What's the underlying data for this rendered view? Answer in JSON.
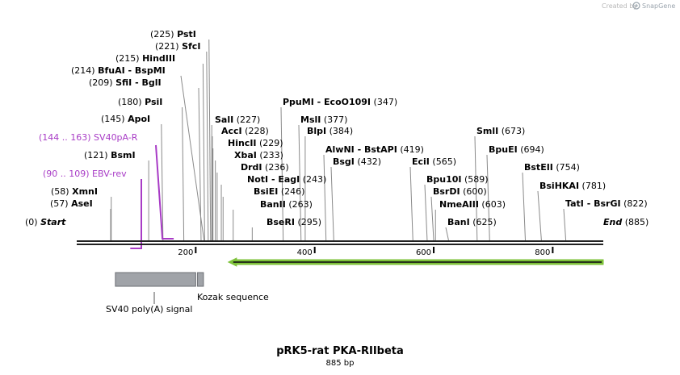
{
  "credit": {
    "prefix": "Created by",
    "brand": "SnapGene"
  },
  "map": {
    "name": "pRK5-rat PKA-RIIbeta",
    "length_label": "885 bp",
    "length": 885,
    "backbone_color": "#222222",
    "feature_color": "#a0a3a8",
    "arrow_color": "#7ec23a",
    "primer_color": "#a83bc6"
  },
  "ticks": [
    "200",
    "400",
    "600",
    "800"
  ],
  "tick_positions": [
    200,
    400,
    600,
    800
  ],
  "sites": [
    {
      "pos": "(225)",
      "name": "PstI",
      "bp": 225,
      "side": "L"
    },
    {
      "pos": "(221)",
      "name": "SfcI",
      "bp": 221,
      "side": "L"
    },
    {
      "pos": "(215)",
      "name": "HindIII",
      "bp": 215,
      "side": "L"
    },
    {
      "pos": "(214)",
      "name": "BfuAI - BspMI",
      "bp": 214,
      "side": "L"
    },
    {
      "pos": "(209)",
      "name": "SfiI - BglI",
      "bp": 209,
      "side": "L"
    },
    {
      "pos": "(180)",
      "name": "PsiI",
      "bp": 180,
      "side": "L"
    },
    {
      "pos": "(145)",
      "name": "ApoI",
      "bp": 145,
      "side": "L"
    },
    {
      "pos": "(121)",
      "name": "BsmI",
      "bp": 121,
      "side": "L"
    },
    {
      "pos": "(58)",
      "name": "XmnI",
      "bp": 58,
      "side": "L"
    },
    {
      "pos": "(57)",
      "name": "AseI",
      "bp": 57,
      "side": "L"
    },
    {
      "pos": "(0)",
      "name": "Start",
      "bp": 0,
      "side": "L",
      "italic": true
    },
    {
      "pos": "(347)",
      "name": "PpuMI - EcoO109I",
      "bp": 347,
      "side": "R"
    },
    {
      "pos": "(227)",
      "name": "SalI",
      "bp": 227,
      "side": "R"
    },
    {
      "pos": "(377)",
      "name": "MslI",
      "bp": 377,
      "side": "R"
    },
    {
      "pos": "(228)",
      "name": "AccI",
      "bp": 228,
      "side": "R"
    },
    {
      "pos": "(384)",
      "name": "BlpI",
      "bp": 384,
      "side": "R"
    },
    {
      "pos": "(229)",
      "name": "HincII",
      "bp": 229,
      "side": "R"
    },
    {
      "pos": "(419)",
      "name": "AlwNI - BstAPI",
      "bp": 419,
      "side": "R"
    },
    {
      "pos": "(233)",
      "name": "XbaI",
      "bp": 233,
      "side": "R"
    },
    {
      "pos": "(432)",
      "name": "BsgI",
      "bp": 432,
      "side": "R"
    },
    {
      "pos": "(236)",
      "name": "DrdI",
      "bp": 236,
      "side": "R"
    },
    {
      "pos": "(243)",
      "name": "NotI - EagI",
      "bp": 243,
      "side": "R"
    },
    {
      "pos": "(246)",
      "name": "BsiEI",
      "bp": 246,
      "side": "R"
    },
    {
      "pos": "(263)",
      "name": "BanII",
      "bp": 263,
      "side": "R"
    },
    {
      "pos": "(295)",
      "name": "BseRI",
      "bp": 295,
      "side": "R"
    },
    {
      "pos": "(565)",
      "name": "EciI",
      "bp": 565,
      "side": "R"
    },
    {
      "pos": "(589)",
      "name": "Bpu10I",
      "bp": 589,
      "side": "R"
    },
    {
      "pos": "(600)",
      "name": "BsrDI",
      "bp": 600,
      "side": "R"
    },
    {
      "pos": "(603)",
      "name": "NmeAIII",
      "bp": 603,
      "side": "R"
    },
    {
      "pos": "(625)",
      "name": "BanI",
      "bp": 625,
      "side": "R"
    },
    {
      "pos": "(673)",
      "name": "SmlI",
      "bp": 673,
      "side": "R"
    },
    {
      "pos": "(694)",
      "name": "BpuEI",
      "bp": 694,
      "side": "R"
    },
    {
      "pos": "(754)",
      "name": "BstEII",
      "bp": 754,
      "side": "R"
    },
    {
      "pos": "(781)",
      "name": "BsiHKAI",
      "bp": 781,
      "side": "R"
    },
    {
      "pos": "(822)",
      "name": "TatI - BsrGI",
      "bp": 822,
      "side": "R"
    },
    {
      "pos": "(885)",
      "name": "End",
      "bp": 885,
      "side": "R",
      "italic": true
    }
  ],
  "primers": [
    {
      "label": "(144 .. 163)  SV40pA-R",
      "start": 144,
      "end": 163,
      "direction": "reverse"
    },
    {
      "label": "(90 .. 109)  EBV-rev",
      "start": 90,
      "end": 109,
      "direction": "reverse"
    }
  ],
  "features": [
    {
      "label": "SV40 poly(A) signal",
      "start": 65,
      "end": 200
    },
    {
      "label": "Kozak sequence",
      "start": 203,
      "end": 213
    }
  ],
  "orf": {
    "start": 255,
    "end": 885,
    "direction": "reverse"
  }
}
